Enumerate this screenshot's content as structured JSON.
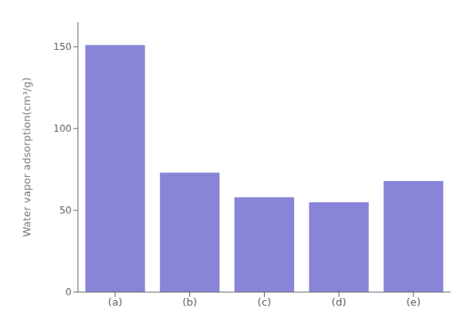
{
  "chart_data": {
    "type": "bar",
    "categories": [
      "(a)",
      "(b)",
      "(c)",
      "(d)",
      "(e)"
    ],
    "values": [
      151,
      73,
      58,
      55,
      68
    ],
    "color": "#8884d8",
    "ylabel": "Water vapor adsorption(cm³/g)",
    "ylim": [
      0,
      165
    ],
    "yticks": [
      0,
      50,
      100,
      150
    ],
    "grid": false
  }
}
